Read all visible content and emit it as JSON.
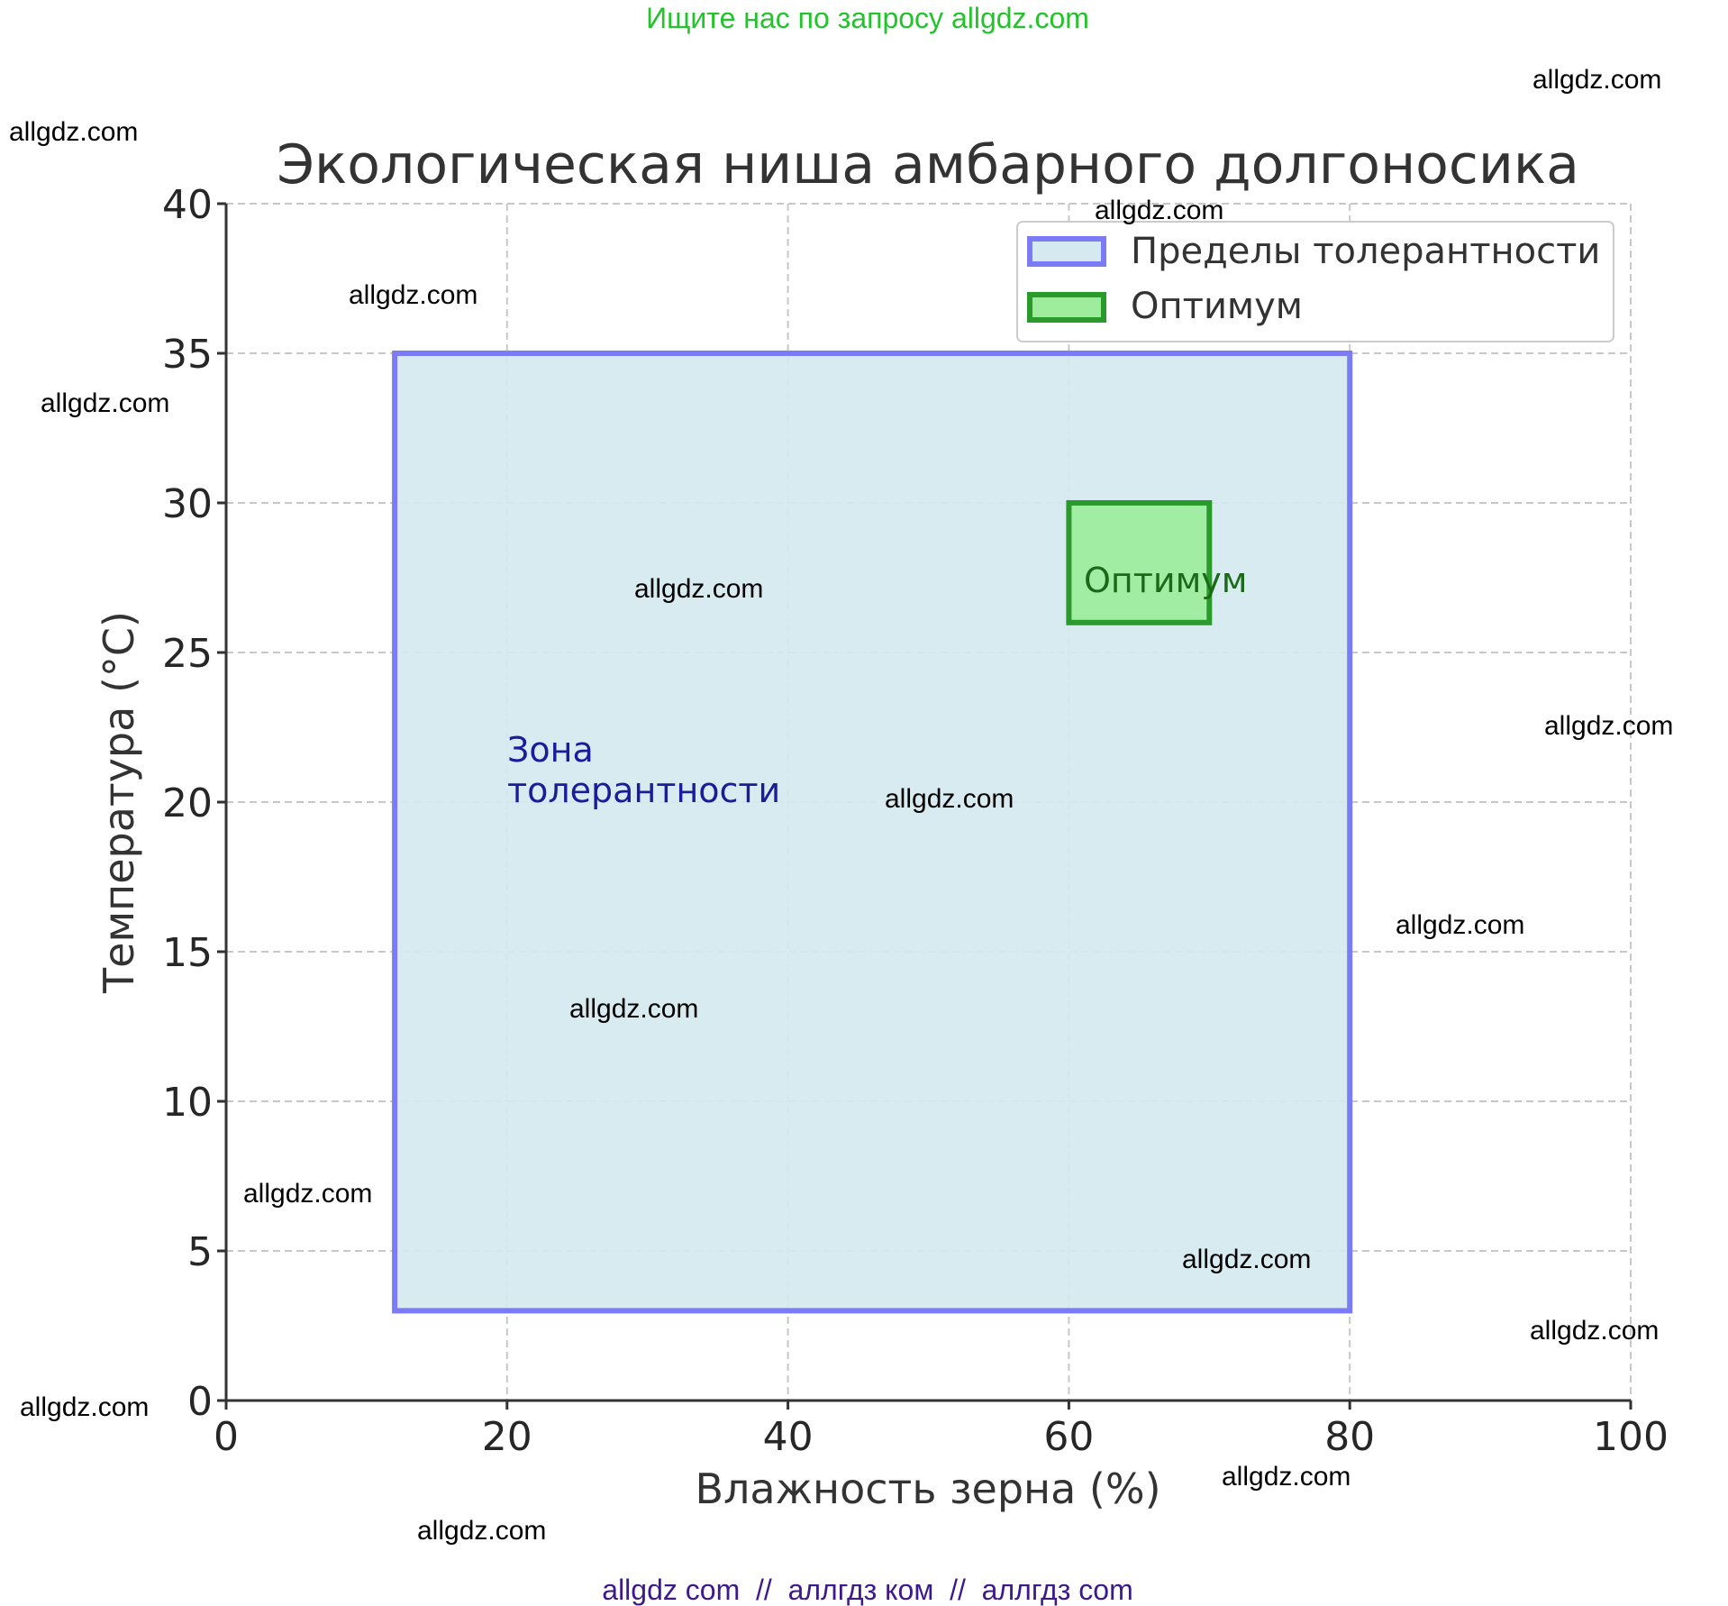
{
  "header_banner": "Ищите нас по запросу allgdz.com",
  "footer_banner": "allgdz com  //  аллгдз ком  //  аллгдз com",
  "watermark_text": "allgdz.com",
  "colors": {
    "banner": "#22c32b",
    "footer": "#3c1a8c",
    "tolerance_fill": "#d5e9f0",
    "tolerance_edge": "#7b7bf5",
    "optimum_fill": "#9ded9d",
    "optimum_edge": "#2a9a2a",
    "tolerance_label": "#1c1c9a",
    "optimum_label": "#1a6a1a"
  },
  "chart_data": {
    "type": "rectangles",
    "title": "Экологическая ниша амбарного долгоносика",
    "xlabel": "Влажность зерна (%)",
    "ylabel": "Температура (°C)",
    "xlim": [
      0,
      100
    ],
    "ylim": [
      0,
      40
    ],
    "xticks": [
      "0",
      "20",
      "40",
      "60",
      "80",
      "100"
    ],
    "yticks": [
      "0",
      "5",
      "10",
      "15",
      "20",
      "25",
      "30",
      "35",
      "40"
    ],
    "grid": true,
    "legend_position": "top-right",
    "legend": [
      "Пределы толерантности",
      "Оптимум"
    ],
    "series": [
      {
        "name": "Пределы толерантности",
        "x": [
          12,
          80
        ],
        "y": [
          3,
          35
        ]
      },
      {
        "name": "Оптимум",
        "x": [
          60,
          70
        ],
        "y": [
          26,
          30
        ]
      }
    ],
    "annotations": [
      {
        "text_lines": [
          "Зона",
          "толерантности"
        ],
        "x": 20,
        "y": 21
      },
      {
        "text": "Оптимум",
        "x": 60.5,
        "y": 27
      }
    ]
  }
}
